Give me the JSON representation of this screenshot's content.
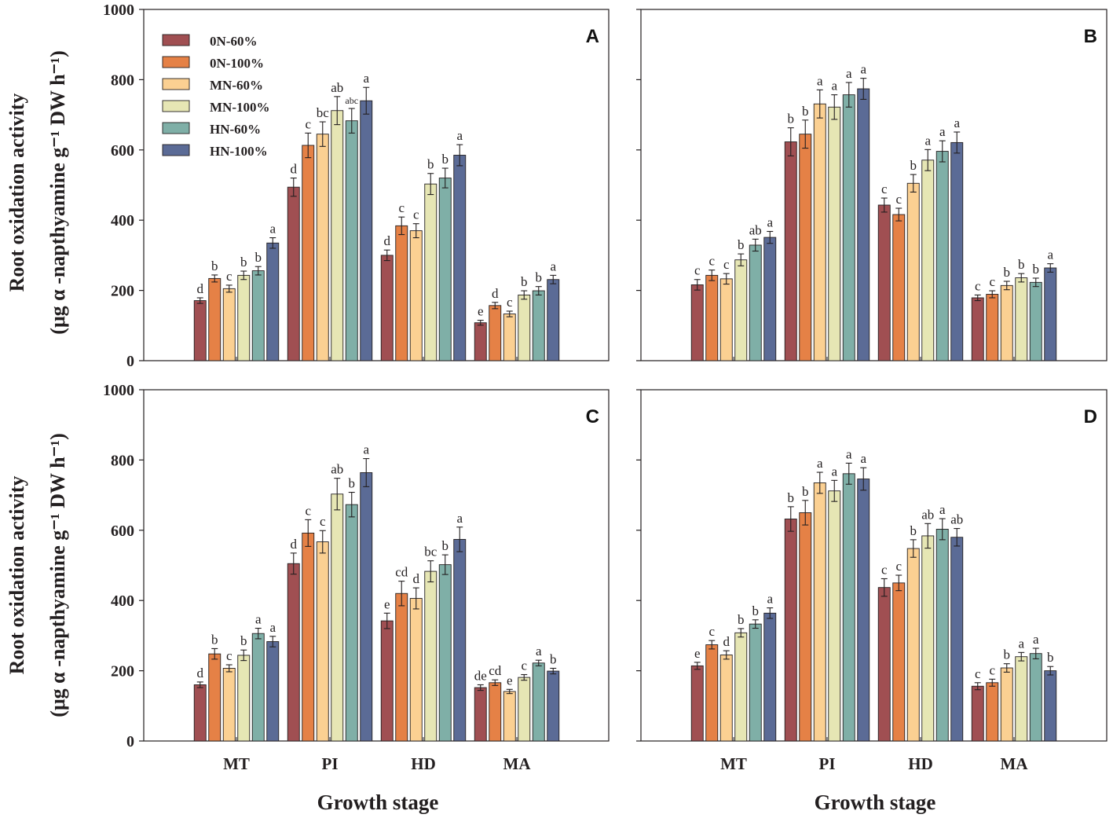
{
  "figure": {
    "y_axis_label_line1": "Root oxidation activity",
    "y_axis_label_line2": "(μg α -napthyamine g⁻¹ DW h⁻¹)",
    "x_axis_label": "Growth stage"
  },
  "chart_data": [
    {
      "type": "bar",
      "panel": "A",
      "categories": [
        "MT",
        "PI",
        "HD",
        "MA"
      ],
      "ylim": [
        0,
        1000
      ],
      "yticks": [
        0,
        200,
        400,
        600,
        800,
        1000
      ],
      "xlabel": "",
      "ylabel": "Root oxidation activity (μg α -napthyamine g⁻¹ DW h⁻¹)",
      "legend_position": "top-left",
      "series": [
        {
          "name": "0N-60%",
          "color": "#a04f52",
          "values": [
            171,
            494,
            300,
            108
          ],
          "errors": [
            8,
            26,
            15,
            7
          ],
          "letters": [
            "d",
            "d",
            "d",
            "e"
          ]
        },
        {
          "name": "0N-100%",
          "color": "#e58146",
          "values": [
            234,
            613,
            384,
            157
          ],
          "errors": [
            10,
            35,
            25,
            9
          ],
          "letters": [
            "b",
            "c",
            "c",
            "d"
          ]
        },
        {
          "name": "MN-60%",
          "color": "#fbd092",
          "values": [
            205,
            645,
            370,
            133
          ],
          "errors": [
            10,
            35,
            20,
            8
          ],
          "letters": [
            "c",
            "bc",
            "c",
            "c"
          ]
        },
        {
          "name": "MN-100%",
          "color": "#e6e6b4",
          "values": [
            243,
            712,
            503,
            187
          ],
          "errors": [
            12,
            40,
            30,
            12
          ],
          "letters": [
            "b",
            "ab",
            "b",
            "b"
          ]
        },
        {
          "name": "HN-60%",
          "color": "#7fafa7",
          "values": [
            256,
            683,
            520,
            199
          ],
          "errors": [
            12,
            35,
            28,
            12
          ],
          "letters": [
            "b",
            "abc",
            "b",
            "b"
          ]
        },
        {
          "name": "HN-100%",
          "color": "#5b6b96",
          "values": [
            335,
            740,
            585,
            231
          ],
          "errors": [
            15,
            38,
            30,
            12
          ],
          "letters": [
            "a",
            "a",
            "a",
            "a"
          ]
        }
      ]
    },
    {
      "type": "bar",
      "panel": "B",
      "categories": [
        "MT",
        "PI",
        "HD",
        "MA"
      ],
      "ylim": [
        0,
        1000
      ],
      "yticks": [
        0,
        200,
        400,
        600,
        800,
        1000
      ],
      "xlabel": "",
      "ylabel": "",
      "series": [
        {
          "name": "0N-60%",
          "color": "#a04f52",
          "values": [
            216,
            623,
            443,
            179
          ],
          "errors": [
            15,
            40,
            20,
            8
          ],
          "letters": [
            "c",
            "b",
            "c",
            "c"
          ]
        },
        {
          "name": "0N-100%",
          "color": "#e58146",
          "values": [
            243,
            645,
            416,
            189
          ],
          "errors": [
            15,
            40,
            18,
            10
          ],
          "letters": [
            "c",
            "b",
            "c",
            "c"
          ]
        },
        {
          "name": "MN-60%",
          "color": "#fbd092",
          "values": [
            233,
            731,
            505,
            214
          ],
          "errors": [
            15,
            40,
            25,
            12
          ],
          "letters": [
            "c",
            "a",
            "b",
            "b"
          ]
        },
        {
          "name": "MN-100%",
          "color": "#e6e6b4",
          "values": [
            287,
            722,
            571,
            236
          ],
          "errors": [
            17,
            35,
            30,
            12
          ],
          "letters": [
            "b",
            "a",
            "a",
            "b"
          ]
        },
        {
          "name": "HN-60%",
          "color": "#7fafa7",
          "values": [
            329,
            757,
            596,
            223
          ],
          "errors": [
            17,
            35,
            30,
            12
          ],
          "letters": [
            "ab",
            "a",
            "a",
            "b"
          ]
        },
        {
          "name": "HN-100%",
          "color": "#5b6b96",
          "values": [
            351,
            774,
            621,
            264
          ],
          "errors": [
            17,
            30,
            30,
            12
          ],
          "letters": [
            "a",
            "a",
            "a",
            "a"
          ]
        }
      ]
    },
    {
      "type": "bar",
      "panel": "C",
      "categories": [
        "MT",
        "PI",
        "HD",
        "MA"
      ],
      "ylim": [
        0,
        1000
      ],
      "yticks": [
        0,
        200,
        400,
        600,
        800,
        1000
      ],
      "xlabel": "Growth stage",
      "ylabel": "Root oxidation activity (μg α -napthyamine g⁻¹ DW h⁻¹)",
      "series": [
        {
          "name": "0N-60%",
          "color": "#a04f52",
          "values": [
            160,
            505,
            342,
            152
          ],
          "errors": [
            8,
            30,
            22,
            8
          ],
          "letters": [
            "d",
            "d",
            "e",
            "de"
          ]
        },
        {
          "name": "0N-100%",
          "color": "#e58146",
          "values": [
            248,
            592,
            420,
            166
          ],
          "errors": [
            15,
            38,
            35,
            8
          ],
          "letters": [
            "b",
            "c",
            "cd",
            "cd"
          ]
        },
        {
          "name": "MN-60%",
          "color": "#fbd092",
          "values": [
            207,
            567,
            406,
            141
          ],
          "errors": [
            10,
            32,
            30,
            6
          ],
          "letters": [
            "c",
            "c",
            "d",
            "e"
          ]
        },
        {
          "name": "MN-100%",
          "color": "#e6e6b4",
          "values": [
            244,
            703,
            483,
            181
          ],
          "errors": [
            15,
            45,
            30,
            8
          ],
          "letters": [
            "b",
            "ab",
            "bc",
            "c"
          ]
        },
        {
          "name": "HN-60%",
          "color": "#7fafa7",
          "values": [
            306,
            673,
            502,
            222
          ],
          "errors": [
            15,
            35,
            28,
            8
          ],
          "letters": [
            "a",
            "b",
            "b",
            "a"
          ]
        },
        {
          "name": "HN-100%",
          "color": "#5b6b96",
          "values": [
            283,
            764,
            574,
            199
          ],
          "errors": [
            15,
            40,
            35,
            8
          ],
          "letters": [
            "a",
            "a",
            "a",
            "b"
          ]
        }
      ]
    },
    {
      "type": "bar",
      "panel": "D",
      "categories": [
        "MT",
        "PI",
        "HD",
        "MA"
      ],
      "ylim": [
        0,
        1000
      ],
      "yticks": [
        0,
        200,
        400,
        600,
        800,
        1000
      ],
      "xlabel": "Growth stage",
      "ylabel": "",
      "series": [
        {
          "name": "0N-60%",
          "color": "#a04f52",
          "values": [
            214,
            632,
            437,
            156
          ],
          "errors": [
            10,
            35,
            25,
            10
          ],
          "letters": [
            "e",
            "b",
            "c",
            "c"
          ]
        },
        {
          "name": "0N-100%",
          "color": "#e58146",
          "values": [
            274,
            650,
            450,
            166
          ],
          "errors": [
            12,
            35,
            22,
            10
          ],
          "letters": [
            "c",
            "b",
            "c",
            "c"
          ]
        },
        {
          "name": "MN-60%",
          "color": "#fbd092",
          "values": [
            245,
            735,
            548,
            208
          ],
          "errors": [
            12,
            30,
            25,
            12
          ],
          "letters": [
            "d",
            "a",
            "b",
            "b"
          ]
        },
        {
          "name": "MN-100%",
          "color": "#e6e6b4",
          "values": [
            308,
            712,
            584,
            240
          ],
          "errors": [
            12,
            30,
            35,
            12
          ],
          "letters": [
            "b",
            "a",
            "ab",
            "a"
          ]
        },
        {
          "name": "HN-60%",
          "color": "#7fafa7",
          "values": [
            333,
            761,
            603,
            249
          ],
          "errors": [
            12,
            30,
            30,
            15
          ],
          "letters": [
            "b",
            "a",
            "a",
            "a"
          ]
        },
        {
          "name": "HN-100%",
          "color": "#5b6b96",
          "values": [
            364,
            746,
            580,
            200
          ],
          "errors": [
            15,
            32,
            25,
            12
          ],
          "letters": [
            "a",
            "a",
            "ab",
            "b"
          ]
        }
      ]
    }
  ]
}
